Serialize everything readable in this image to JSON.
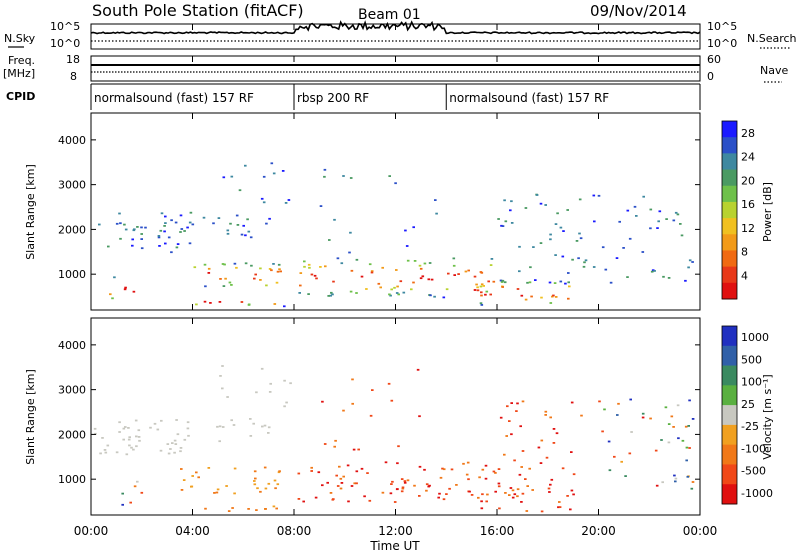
{
  "header": {
    "station": "South Pole Station (fitACF)",
    "beam": "Beam 01",
    "date": "09/Nov/2014"
  },
  "colors": {
    "axis": "#000000",
    "cpid_line": "#000000"
  },
  "noise_panel": {
    "left_label": "N.Sky",
    "right_label": "N.Search",
    "left_ticks": [
      "10^5",
      "10^0"
    ],
    "right_ticks": [
      "10^5",
      "10^0"
    ]
  },
  "freq_panel": {
    "left_label": "Freq.",
    "left_unit": "[MHz]",
    "right_label": "Nave",
    "left_ticks": [
      "18",
      "8"
    ],
    "right_ticks": [
      "60",
      "0"
    ]
  },
  "cpid_panel": {
    "label": "CPID",
    "segments": [
      {
        "start_hour": 0,
        "end_hour": 8,
        "text": "normalsound (fast) 157 RF"
      },
      {
        "start_hour": 8,
        "end_hour": 14,
        "text": "rbsp 200 RF"
      },
      {
        "start_hour": 14,
        "end_hour": 24,
        "text": "normalsound (fast) 157 RF"
      }
    ]
  },
  "chart_data": [
    {
      "type": "heatmap",
      "name": "power",
      "ylabel": "Slant Range [km]",
      "y_ticks": [
        "1000",
        "2000",
        "3000",
        "4000"
      ],
      "ylim": [
        200,
        4600
      ],
      "xlim_hours": [
        0,
        24
      ],
      "colorbar": {
        "label": "Power [dB]",
        "ticks": [
          "4",
          "8",
          "12",
          "16",
          "20",
          "24",
          "28"
        ],
        "bands": [
          "#1a1aff",
          "#2b50c8",
          "#3e88a0",
          "#4a9a62",
          "#6ec04a",
          "#b8d230",
          "#f0c020",
          "#f29a18",
          "#f06a12",
          "#e83818",
          "#e01010"
        ]
      }
    },
    {
      "type": "heatmap",
      "name": "velocity",
      "ylabel": "Slant Range [km]",
      "y_ticks": [
        "1000",
        "2000",
        "3000",
        "4000"
      ],
      "ylim": [
        200,
        4600
      ],
      "xlim_hours": [
        0,
        24
      ],
      "xlabel": "Time UT",
      "x_ticks": [
        "00:00",
        "04:00",
        "08:00",
        "12:00",
        "16:00",
        "20:00",
        "00:00"
      ],
      "colorbar": {
        "label": "Velocity [m s⁻¹]",
        "ticks": [
          "1000",
          "500",
          "100",
          "25",
          "-25",
          "-100",
          "-500",
          "-1000"
        ],
        "bands": [
          "#2030c0",
          "#3060a8",
          "#3a8a60",
          "#5ab040",
          "#c8c8c0",
          "#f0a020",
          "#f07818",
          "#f04818",
          "#e01010"
        ]
      }
    }
  ]
}
